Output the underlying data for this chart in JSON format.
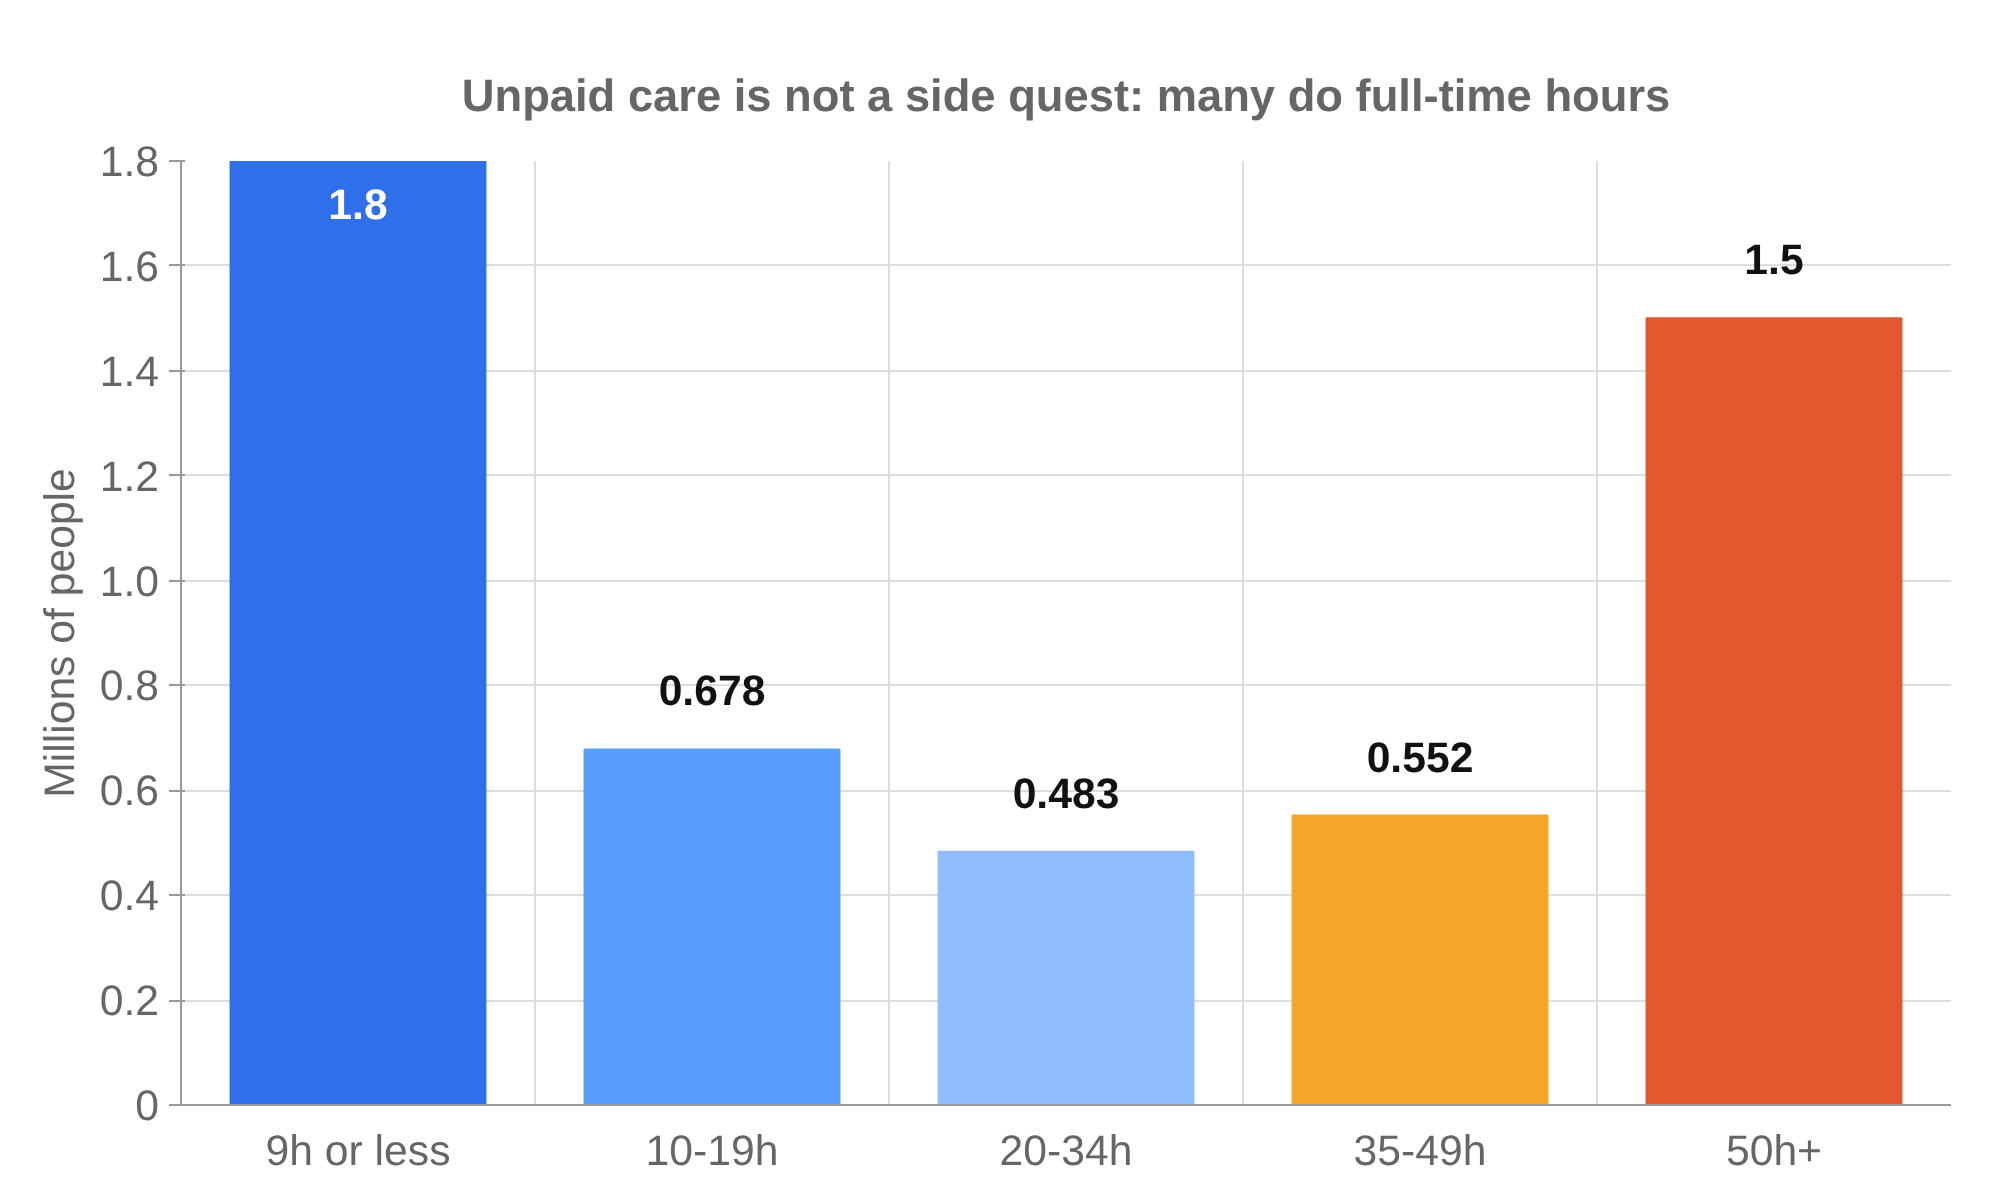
{
  "chart_data": {
    "type": "bar",
    "title": "Unpaid care is not a side quest: many do full-time hours",
    "ylabel": "Millions of people",
    "categories": [
      "9h or less",
      "10-19h",
      "20-34h",
      "35-49h",
      "50h+"
    ],
    "values": [
      1.8,
      0.678,
      0.483,
      0.552,
      1.5
    ],
    "colors": [
      "#2f6fea",
      "#589ffd",
      "#8fbdfe",
      "#f4a626",
      "#e3582f"
    ],
    "ylim": [
      0,
      1.8
    ],
    "yticks": [
      0,
      {
        "value": 0.2,
        "label": "0.2"
      },
      {
        "value": 0.4,
        "label": "0.4"
      },
      {
        "value": 0.6,
        "label": "0.6"
      },
      {
        "value": 0.8,
        "label": "0.8"
      },
      {
        "value": 1.0,
        "label": "1.0"
      },
      {
        "value": 1.2,
        "label": "1.2"
      },
      {
        "value": 1.4,
        "label": "1.4"
      },
      {
        "value": 1.6,
        "label": "1.6"
      },
      {
        "value": 1.8,
        "label": "1.8"
      }
    ],
    "grid": true,
    "data_labels": true
  }
}
